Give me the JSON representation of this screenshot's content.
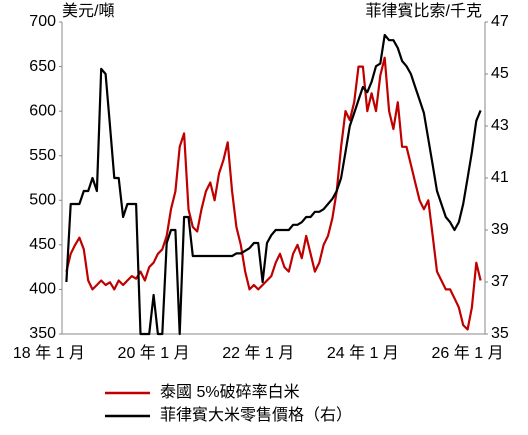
{
  "chart_data": {
    "type": "line",
    "y_label": "美元/噸",
    "y2_label": "菲律賓比索/千克",
    "x": [
      "2018-05",
      "2018-06",
      "2018-07",
      "2018-08",
      "2018-09",
      "2018-10",
      "2018-11",
      "2018-12",
      "2019-01",
      "2019-02",
      "2019-03",
      "2019-04",
      "2019-05",
      "2019-06",
      "2019-07",
      "2019-08",
      "2019-09",
      "2019-10",
      "2019-11",
      "2019-12",
      "2020-01",
      "2020-02",
      "2020-03",
      "2020-04",
      "2020-05",
      "2020-06",
      "2020-07",
      "2020-08",
      "2020-09",
      "2020-10",
      "2020-11",
      "2020-12",
      "2021-01",
      "2021-02",
      "2021-03",
      "2021-04",
      "2021-05",
      "2021-06",
      "2021-07",
      "2021-08",
      "2021-09",
      "2021-10",
      "2021-11",
      "2021-12",
      "2022-01",
      "2022-02",
      "2022-03",
      "2022-04",
      "2022-05",
      "2022-06",
      "2022-07",
      "2022-08",
      "2022-09",
      "2022-10",
      "2022-11",
      "2022-12",
      "2023-01",
      "2023-02",
      "2023-03",
      "2023-04",
      "2023-05",
      "2023-06",
      "2023-07",
      "2023-08",
      "2023-09",
      "2023-10",
      "2023-11",
      "2023-12",
      "2024-01",
      "2024-02",
      "2024-03",
      "2024-04",
      "2024-05",
      "2024-06",
      "2024-07",
      "2024-08",
      "2024-09",
      "2024-10",
      "2024-11",
      "2024-12",
      "2025-01",
      "2025-02",
      "2025-03",
      "2025-04",
      "2025-05",
      "2025-06",
      "2025-07",
      "2025-08",
      "2025-09",
      "2025-10",
      "2025-11",
      "2025-12",
      "2026-01",
      "2026-02",
      "2026-03",
      "2026-04"
    ],
    "xlim": [
      "2018-04",
      "2026-05"
    ],
    "xticks": [
      {
        "value": "2018-01",
        "label": "18 年 1 月"
      },
      {
        "value": "2020-01",
        "label": "20 年 1 月"
      },
      {
        "value": "2022-01",
        "label": "22 年 1 月"
      },
      {
        "value": "2024-01",
        "label": "24 年 1 月"
      },
      {
        "value": "2026-01",
        "label": "26 年 1 月"
      }
    ],
    "ylim": [
      350,
      700
    ],
    "yticks": [
      350,
      400,
      450,
      500,
      550,
      600,
      650,
      700
    ],
    "y2lim": [
      35,
      47
    ],
    "y2ticks": [
      35,
      37,
      39,
      41,
      43,
      45,
      47
    ],
    "series": [
      {
        "name": "泰國 5%破碎率白米",
        "color": "#c00000",
        "values": [
          420,
          440,
          450,
          458,
          445,
          410,
          400,
          405,
          410,
          405,
          408,
          400,
          410,
          405,
          410,
          415,
          412,
          420,
          410,
          425,
          430,
          440,
          445,
          460,
          490,
          510,
          560,
          575,
          490,
          470,
          465,
          490,
          510,
          520,
          500,
          530,
          545,
          565,
          510,
          470,
          450,
          420,
          400,
          405,
          400,
          405,
          410,
          415,
          430,
          440,
          425,
          420,
          440,
          450,
          435,
          460,
          440,
          420,
          430,
          450,
          460,
          480,
          510,
          560,
          600,
          590,
          610,
          650,
          650,
          600,
          620,
          600,
          640,
          660,
          600,
          580,
          610,
          560,
          560,
          540,
          520,
          500,
          490,
          500,
          460,
          420,
          410,
          400,
          400,
          390,
          380,
          360,
          355,
          380,
          430,
          410
        ]
      },
      {
        "name": "菲律賓大米零售價格（右）",
        "color": "#000000",
        "axis": "y2",
        "values": [
          37,
          40,
          40,
          40,
          40.5,
          40.5,
          41,
          40.5,
          45.2,
          45,
          43,
          41,
          41,
          39.5,
          40,
          40,
          40,
          35,
          35,
          35,
          36.5,
          35,
          35,
          38.5,
          39,
          39,
          35,
          39.5,
          39.5,
          38,
          38,
          38,
          38,
          38,
          38,
          38,
          38,
          38,
          38,
          38.1,
          38.1,
          38.2,
          38.3,
          38.5,
          38.5,
          37,
          38.5,
          38.8,
          39,
          39,
          39,
          39,
          39.2,
          39.2,
          39.3,
          39.5,
          39.5,
          39.7,
          39.7,
          39.8,
          40,
          40.2,
          40.5,
          41,
          42,
          43,
          43.5,
          44,
          44.5,
          44.3,
          44.7,
          45.3,
          45.4,
          46.5,
          46.3,
          46.3,
          46,
          45.5,
          45.3,
          45,
          44.5,
          44,
          43.5,
          42.5,
          41.5,
          40.5,
          40,
          39.5,
          39.3,
          39,
          39.3,
          40,
          41,
          42,
          43.2,
          43.6
        ]
      }
    ]
  }
}
